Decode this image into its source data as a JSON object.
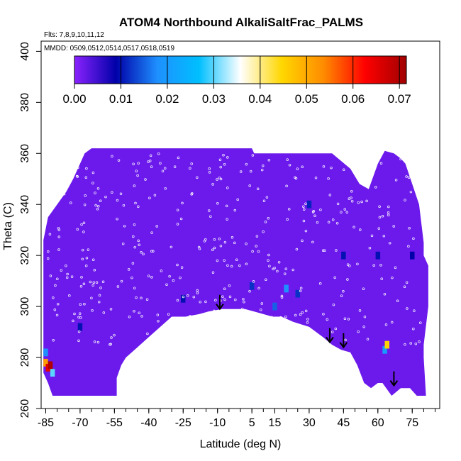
{
  "chart_data": {
    "type": "heatmap",
    "title": "ATOM4 Northbound AlkaliSaltFrac_PALMS",
    "subtitle_flights": "Flts: 7,8,9,10,11,12",
    "subtitle_dates": "MMDD: 0509,0512,0514,0517,0518,0519",
    "xlabel": "Latitude (deg N)",
    "ylabel": "Theta (C)",
    "xlim": [
      -87,
      87
    ],
    "ylim": [
      260,
      404
    ],
    "x_ticks": [
      -85,
      -70,
      -55,
      -40,
      -25,
      -10,
      5,
      15,
      30,
      45,
      60,
      75
    ],
    "y_ticks": [
      260,
      280,
      300,
      320,
      340,
      360,
      380,
      400
    ],
    "colorbar": {
      "min": 0.0,
      "max": 0.0715,
      "tick_values": [
        0.0,
        0.01,
        0.02,
        0.03,
        0.04,
        0.05,
        0.06,
        0.07
      ],
      "tick_labels": [
        "0.00",
        "0.01",
        "0.02",
        "0.03",
        "0.04",
        "0.05",
        "0.06",
        "0.07"
      ],
      "colors": [
        "#8b22ff",
        "#0000a8",
        "#1e90ff",
        "#00bfff",
        "#ffffff",
        "#ffd700",
        "#ff8c00",
        "#ff0000",
        "#a00000"
      ]
    },
    "background_value": 0.002,
    "cells": [
      {
        "lat": -85,
        "theta": 278,
        "value": 0.052
      },
      {
        "lat": -84,
        "theta": 276,
        "value": 0.065
      },
      {
        "lat": -83,
        "theta": 277,
        "value": 0.07
      },
      {
        "lat": -82,
        "theta": 274,
        "value": 0.03
      },
      {
        "lat": -85,
        "theta": 282,
        "value": 0.018
      },
      {
        "lat": -70,
        "theta": 292,
        "value": 0.01
      },
      {
        "lat": -25,
        "theta": 303,
        "value": 0.01
      },
      {
        "lat": 5,
        "theta": 308,
        "value": 0.012
      },
      {
        "lat": 15,
        "theta": 300,
        "value": 0.015
      },
      {
        "lat": 20,
        "theta": 307,
        "value": 0.018
      },
      {
        "lat": 25,
        "theta": 305,
        "value": 0.012
      },
      {
        "lat": 30,
        "theta": 340,
        "value": 0.011
      },
      {
        "lat": 45,
        "theta": 320,
        "value": 0.01
      },
      {
        "lat": 60,
        "theta": 320,
        "value": 0.01
      },
      {
        "lat": 63,
        "theta": 283,
        "value": 0.02
      },
      {
        "lat": 64,
        "theta": 285,
        "value": 0.045
      },
      {
        "lat": 75,
        "theta": 320,
        "value": 0.009
      }
    ],
    "arrows": [
      {
        "lat": -9,
        "theta": 299
      },
      {
        "lat": 39,
        "theta": 286
      },
      {
        "lat": 45,
        "theta": 284
      },
      {
        "lat": 67,
        "theta": 269
      }
    ],
    "grid": false,
    "legend": "colorbar-top"
  }
}
